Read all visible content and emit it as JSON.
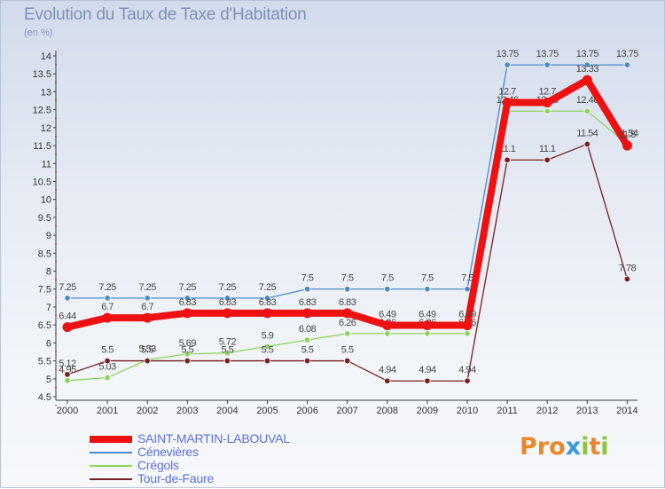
{
  "header": {
    "title": "Evolution du Taux de Taxe d'Habitation",
    "unit_label": "(en %)"
  },
  "brand": {
    "logo_text": "Proxiti",
    "letter_colors": [
      "#e9872a",
      "#e9872a",
      "#e9872a",
      "#3c9ad8",
      "#8cc63f",
      "#e9872a",
      "#8cc63f"
    ]
  },
  "chart_data": {
    "type": "line",
    "title": "Evolution du Taux de Taxe d'Habitation",
    "ylabel": "(en %)",
    "xlabel": "",
    "ylim": [
      4.5,
      14
    ],
    "yticks": [
      "4.5",
      "5",
      "5.5",
      "6",
      "6.5",
      "7",
      "7.5",
      "8",
      "8.5",
      "9",
      "9.5",
      "10",
      "10.5",
      "11",
      "11.5",
      "12",
      "12.5",
      "13",
      "13.5",
      "14"
    ],
    "categories": [
      "2000",
      "2001",
      "2002",
      "2003",
      "2004",
      "2005",
      "2006",
      "2007",
      "2008",
      "2009",
      "2010",
      "2011",
      "2012",
      "2013",
      "2014"
    ],
    "grid": false,
    "legend_position": "bottom-left",
    "series": [
      {
        "name": "Cénevières",
        "color": "#4a8bc9",
        "values": [
          7.25,
          7.25,
          7.25,
          7.25,
          7.25,
          7.25,
          7.5,
          7.5,
          7.5,
          7.5,
          7.5,
          13.75,
          13.75,
          13.75,
          13.75
        ],
        "labels": [
          "7.25",
          "7.25",
          "7.25",
          "7.25",
          "7.25",
          "7.25",
          "7.5",
          "7.5",
          "7.5",
          "7.5",
          "7.5",
          "13.75",
          "13.75",
          "13.75",
          "13.75"
        ]
      },
      {
        "name": "Crégols",
        "color": "#8fd45a",
        "values": [
          4.95,
          5.03,
          5.53,
          5.69,
          5.72,
          5.9,
          6.08,
          6.26,
          6.26,
          6.26,
          6.26,
          12.46,
          12.46,
          12.46,
          11.54
        ],
        "labels": [
          "4.95",
          "5.03",
          "5.53",
          "5.69",
          "5.72",
          "5.9",
          "6.08",
          "6.26",
          "6.26",
          "6.26",
          "6.26",
          "12.46",
          "12.46",
          "12.46",
          "11.54"
        ]
      },
      {
        "name": "Tour-de-Faure",
        "color": "#7a1f1f",
        "values": [
          5.12,
          5.5,
          5.5,
          5.5,
          5.5,
          5.5,
          5.5,
          5.5,
          4.94,
          4.94,
          4.94,
          11.1,
          11.1,
          11.54,
          7.78
        ],
        "labels": [
          "5.12",
          "5.5",
          "5.5",
          "5.5",
          "5.5",
          "5.5",
          "5.5",
          "5.5",
          "4.94",
          "4.94",
          "4.94",
          "11.1",
          "11.1",
          "11.54",
          "7.78"
        ]
      },
      {
        "name": "SAINT-MARTIN-LABOUVAL",
        "color": "#ee1111",
        "values": [
          6.44,
          6.7,
          6.7,
          6.83,
          6.83,
          6.83,
          6.83,
          6.83,
          6.49,
          6.49,
          6.49,
          12.7,
          12.7,
          13.33,
          11.5
        ],
        "labels": [
          "6.44",
          "6.7",
          "6.7",
          "6.83",
          "6.83",
          "6.83",
          "6.83",
          "6.83",
          "6.49",
          "6.49",
          "6.49",
          "12.7",
          "12.7",
          "13.33",
          "11.5"
        ]
      }
    ]
  },
  "legend": [
    {
      "label": "SAINT-MARTIN-LABOUVAL",
      "color": "#ee1111"
    },
    {
      "label": "Cénevières",
      "color": "#4a8bc9"
    },
    {
      "label": "Crégols",
      "color": "#8fd45a"
    },
    {
      "label": "Tour-de-Faure",
      "color": "#7a1f1f"
    }
  ]
}
